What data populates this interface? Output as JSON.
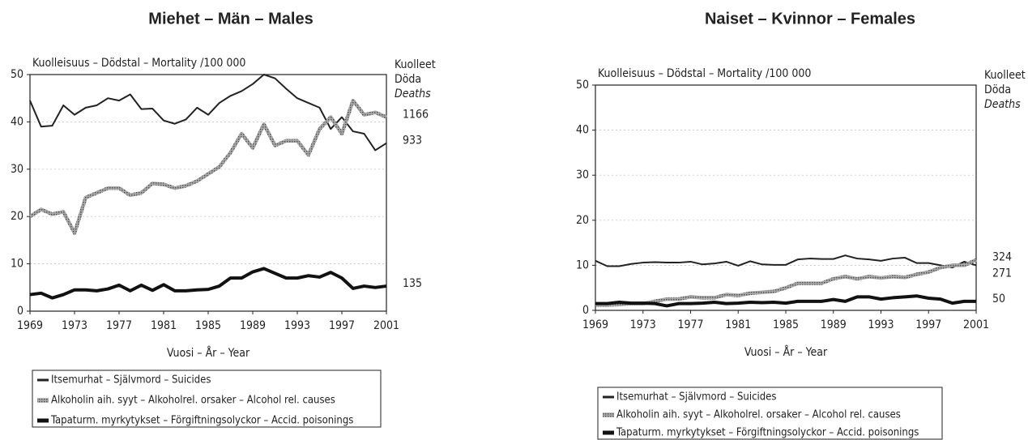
{
  "chart_data": [
    {
      "type": "line",
      "title": "Miehet – Män – Males",
      "ylabel": "Kuolleisuus – Dödstal – Mortality /100 000",
      "deaths_label": [
        "Kuolleet",
        "Döda",
        "Deaths"
      ],
      "xlabel": "Vuosi – År – Year",
      "x": [
        1969,
        1970,
        1971,
        1972,
        1973,
        1974,
        1975,
        1976,
        1977,
        1978,
        1979,
        1980,
        1981,
        1982,
        1983,
        1984,
        1985,
        1986,
        1987,
        1988,
        1989,
        1990,
        1991,
        1992,
        1993,
        1994,
        1995,
        1996,
        1997,
        1998,
        1999,
        2000,
        2001
      ],
      "xlim": [
        1969,
        2001
      ],
      "xticks": [
        1969,
        1973,
        1977,
        1981,
        1985,
        1989,
        1993,
        1997,
        2001
      ],
      "ylim": [
        0,
        50
      ],
      "yticks": [
        0,
        10,
        20,
        30,
        40,
        50
      ],
      "grid": true,
      "series": [
        {
          "name": "Itsemurhat – Självmord – Suicides",
          "color": "#222222",
          "deaths": 933,
          "values": [
            44.5,
            39,
            39.2,
            43.5,
            41.5,
            43,
            43.5,
            45,
            44.5,
            45.8,
            42.7,
            42.8,
            40.3,
            39.6,
            40.5,
            43,
            41.5,
            44,
            45.5,
            46.5,
            48,
            50,
            49.2,
            47,
            45,
            44,
            43,
            38.5,
            41,
            38,
            37.5,
            34,
            35.5
          ]
        },
        {
          "name": "Alkoholin aih. syyt – Alkoholrel. orsaker – Alcohol rel. causes",
          "color": "#9a9a9a",
          "deaths": 1166,
          "values": [
            20,
            21.5,
            20.5,
            21,
            16.5,
            24,
            25,
            26,
            26,
            24.5,
            25,
            27,
            26.8,
            26,
            26.5,
            27.5,
            29,
            30.5,
            33.5,
            37.5,
            34.5,
            39.5,
            35,
            36,
            36,
            33,
            38.5,
            41,
            37.5,
            44.5,
            41.5,
            42,
            41
          ]
        },
        {
          "name": "Tapaturm. myrkytykset – Förgiftningsolyckor – Accid. poisonings",
          "color": "#111111",
          "deaths": 135,
          "values": [
            3.5,
            3.8,
            2.8,
            3.5,
            4.5,
            4.5,
            4.3,
            4.7,
            5.5,
            4.3,
            5.5,
            4.4,
            5.6,
            4.3,
            4.3,
            4.5,
            4.6,
            5.3,
            7,
            7,
            8.3,
            9,
            8,
            7,
            7,
            7.5,
            7.2,
            8.2,
            7,
            4.8,
            5.3,
            5,
            5.3
          ]
        }
      ]
    },
    {
      "type": "line",
      "title": "Naiset – Kvinnor – Females",
      "ylabel": "Kuolleisuus – Dödstal – Mortality /100 000",
      "deaths_label": [
        "Kuolleet",
        "Döda",
        "Deaths"
      ],
      "xlabel": "Vuosi – År – Year",
      "x": [
        1969,
        1970,
        1971,
        1972,
        1973,
        1974,
        1975,
        1976,
        1977,
        1978,
        1979,
        1980,
        1981,
        1982,
        1983,
        1984,
        1985,
        1986,
        1987,
        1988,
        1989,
        1990,
        1991,
        1992,
        1993,
        1994,
        1995,
        1996,
        1997,
        1998,
        1999,
        2000,
        2001
      ],
      "xlim": [
        1969,
        2001
      ],
      "xticks": [
        1969,
        1973,
        1977,
        1981,
        1985,
        1989,
        1993,
        1997,
        2001
      ],
      "ylim": [
        0,
        50
      ],
      "yticks": [
        0,
        10,
        20,
        30,
        40,
        50
      ],
      "grid": true,
      "series": [
        {
          "name": "Itsemurhat – Självmord – Suicides",
          "color": "#222222",
          "deaths": 271,
          "values": [
            11,
            9.8,
            9.8,
            10.3,
            10.6,
            10.7,
            10.6,
            10.6,
            10.8,
            10.2,
            10.4,
            10.8,
            9.9,
            10.9,
            10.2,
            10.1,
            10.1,
            11.3,
            11.5,
            11.4,
            11.4,
            12.2,
            11.5,
            11.3,
            11,
            11.5,
            11.7,
            10.5,
            10.5,
            10,
            9.5,
            10.8,
            10
          ]
        },
        {
          "name": "Alkoholin aih. syyt – Alkoholrel. orsaker – Alcohol rel. causes",
          "color": "#9a9a9a",
          "deaths": 324,
          "values": [
            1.2,
            1.2,
            1.3,
            1.5,
            1.5,
            2,
            2.5,
            2.5,
            3,
            2.8,
            2.8,
            3.5,
            3.3,
            3.8,
            4,
            4.2,
            5,
            6,
            6,
            6,
            7,
            7.5,
            7,
            7.5,
            7.2,
            7.5,
            7.3,
            8,
            8.5,
            9.5,
            10,
            10,
            11.2
          ]
        },
        {
          "name": "Tapaturm. myrkytykset – Förgiftningsolyckor – Accid. poisonings",
          "color": "#111111",
          "deaths": 50,
          "values": [
            1.5,
            1.5,
            1.8,
            1.6,
            1.6,
            1.5,
            1,
            1.5,
            1.5,
            1.6,
            1.8,
            1.5,
            1.6,
            1.8,
            1.7,
            1.8,
            1.6,
            2,
            2,
            2,
            2.4,
            2,
            3,
            3,
            2.5,
            2.8,
            3,
            3.2,
            2.7,
            2.5,
            1.6,
            2,
            2
          ]
        }
      ]
    }
  ]
}
